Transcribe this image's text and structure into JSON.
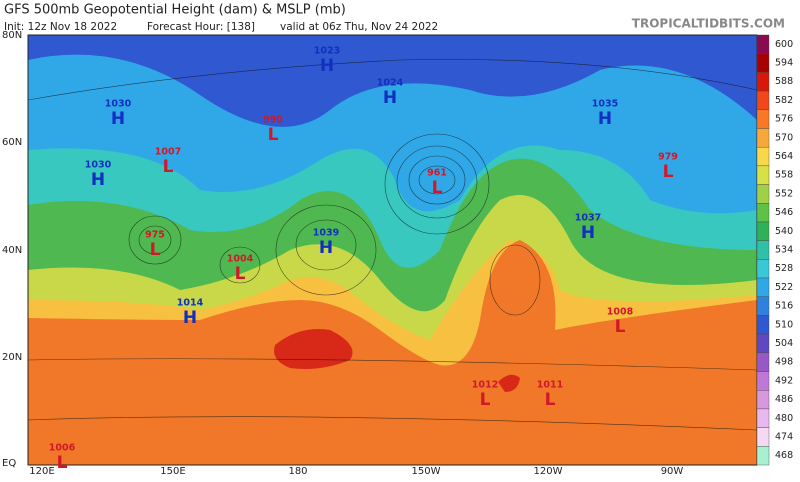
{
  "header": {
    "title": "GFS 500mb Geopotential Height (dam) & MSLP (mb)",
    "init": "Init: 12z Nov 18 2022",
    "forecast_hour": "Forecast Hour: [138]",
    "valid": "valid at 06z Thu, Nov 24 2022",
    "site": "TROPICALTIDBITS.COM"
  },
  "latitude_labels": [
    "80N",
    "60N",
    "40N",
    "20N",
    "EQ"
  ],
  "longitude_labels": [
    "120E",
    "150E",
    "180",
    "150W",
    "120W",
    "90W"
  ],
  "colorbar": [
    {
      "label": "600",
      "color": "#8a0a50"
    },
    {
      "label": "594",
      "color": "#a80000"
    },
    {
      "label": "588",
      "color": "#d81808"
    },
    {
      "label": "582",
      "color": "#f04818"
    },
    {
      "label": "576",
      "color": "#f87828"
    },
    {
      "label": "570",
      "color": "#f8a838"
    },
    {
      "label": "564",
      "color": "#f8d848"
    },
    {
      "label": "558",
      "color": "#d8e048"
    },
    {
      "label": "552",
      "color": "#a0d048"
    },
    {
      "label": "546",
      "color": "#60c048"
    },
    {
      "label": "540",
      "color": "#30b058"
    },
    {
      "label": "534",
      "color": "#30c0a8"
    },
    {
      "label": "528",
      "color": "#38c8d8"
    },
    {
      "label": "522",
      "color": "#30a8e8"
    },
    {
      "label": "516",
      "color": "#3080e0"
    },
    {
      "label": "510",
      "color": "#3058d0"
    },
    {
      "label": "504",
      "color": "#6048c0"
    },
    {
      "label": "498",
      "color": "#9858c8"
    },
    {
      "label": "492",
      "color": "#c078d8"
    },
    {
      "label": "486",
      "color": "#d898e0"
    },
    {
      "label": "480",
      "color": "#e8b8f0"
    },
    {
      "label": "474",
      "color": "#f4d8f4"
    },
    {
      "label": "468",
      "color": "#a8f0d0"
    }
  ],
  "pressure_centers": [
    {
      "symbol": "H",
      "value": "1023"
    },
    {
      "symbol": "H",
      "value": "1024"
    },
    {
      "symbol": "H",
      "value": "1030"
    },
    {
      "symbol": "L",
      "value": "990"
    },
    {
      "symbol": "L",
      "value": "1007"
    },
    {
      "symbol": "H",
      "value": "1030"
    },
    {
      "symbol": "L",
      "value": "961"
    },
    {
      "symbol": "H",
      "value": "1035"
    },
    {
      "symbol": "L",
      "value": "979"
    },
    {
      "symbol": "H",
      "value": "1039"
    },
    {
      "symbol": "L",
      "value": "975"
    },
    {
      "symbol": "L",
      "value": "1004"
    },
    {
      "symbol": "H",
      "value": "1014"
    },
    {
      "symbol": "L",
      "value": "1006"
    },
    {
      "symbol": "L",
      "value": "1012"
    },
    {
      "symbol": "L",
      "value": "1011"
    },
    {
      "symbol": "H",
      "value": "1037"
    },
    {
      "symbol": "L",
      "value": "1008"
    }
  ]
}
